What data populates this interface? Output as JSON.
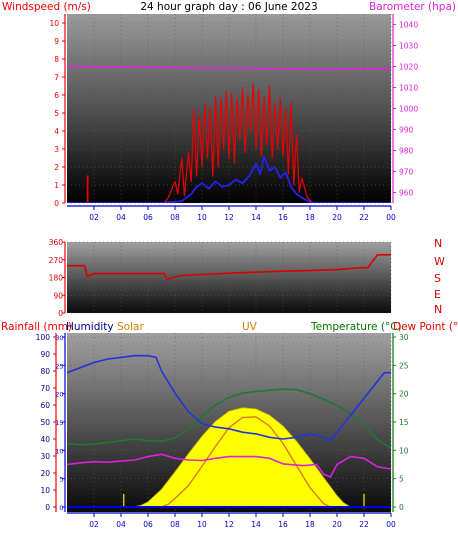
{
  "header": {
    "windspeed_label": "Windspeed (m/s)",
    "title": "24 hour graph day : 06 June 2023",
    "barometer_label": "Barometer (hpa)"
  },
  "labels_bottom": {
    "rainfall": "Rainfall (mm)",
    "humidity": "Humidity",
    "solar": "Solar",
    "uv": "UV",
    "temperature": "Temperature (°C)",
    "dewpoint": "Dew Point (°C"
  },
  "colors": {
    "windspeed": "#ee0000",
    "windspeed_avg": "#2222ee",
    "barometer": "#dd22dd",
    "wind_dir": "#dd0000",
    "humidity": "#2233dd",
    "temperature": "#227733",
    "dewpoint": "#dd22dd",
    "solar": "#ffff00",
    "uv": "#e07020",
    "rain": "#0000ee",
    "humidity_label": "#000088",
    "solar_label": "#d08000",
    "uv_label": "#d08000",
    "temp_label": "#007700",
    "axis_time": "#0000cc"
  },
  "chart_data": [
    {
      "type": "line",
      "name": "wind-baro",
      "x_ticks": [
        "02",
        "04",
        "06",
        "08",
        "10",
        "12",
        "14",
        "16",
        "18",
        "20",
        "22",
        "00"
      ],
      "x_hours": [
        2,
        4,
        6,
        8,
        10,
        12,
        14,
        16,
        18,
        20,
        22,
        24
      ],
      "y_left_ticks": [
        0,
        1,
        2,
        3,
        4,
        5,
        6,
        7,
        8,
        9,
        10
      ],
      "ylim_left": [
        0,
        10.5
      ],
      "y_right_ticks": [
        960,
        970,
        980,
        990,
        1000,
        1010,
        1020,
        1030,
        1040
      ],
      "ylim_right": [
        955,
        1045
      ],
      "series": [
        {
          "name": "Barometer",
          "axis": "right",
          "x": [
            0,
            2,
            4,
            6,
            8,
            10,
            12,
            14,
            16,
            18,
            20,
            22,
            24
          ],
          "y": [
            1020,
            1020,
            1019.8,
            1019.6,
            1019.5,
            1019.4,
            1019.3,
            1019.1,
            1018.8,
            1018.6,
            1018.6,
            1018.8,
            1019
          ]
        },
        {
          "name": "Gust",
          "axis": "left",
          "x": [
            1.5,
            1.5,
            1.55,
            1.55,
            7.2,
            7.5,
            8.0,
            8.2,
            8.5,
            8.7,
            9.0,
            9.2,
            9.4,
            9.6,
            9.8,
            10.0,
            10.2,
            10.4,
            10.6,
            10.8,
            11.0,
            11.2,
            11.4,
            11.6,
            11.8,
            12.0,
            12.2,
            12.4,
            12.6,
            12.8,
            13.0,
            13.2,
            13.4,
            13.6,
            13.8,
            14.0,
            14.2,
            14.4,
            14.6,
            14.8,
            15.0,
            15.2,
            15.4,
            15.6,
            15.8,
            16.0,
            16.2,
            16.4,
            16.6,
            16.8,
            17.0,
            17.2,
            17.4,
            17.8,
            18.2
          ],
          "y": [
            0,
            1.5,
            1.5,
            0,
            0,
            0.3,
            1.2,
            0.5,
            2.5,
            0.4,
            2.8,
            1.2,
            5.2,
            1.5,
            4.9,
            2.0,
            5.5,
            2.5,
            5.3,
            1.5,
            5.9,
            2.0,
            5.8,
            3.0,
            6.2,
            2.5,
            6.1,
            2.2,
            5.8,
            3.5,
            6.4,
            2.8,
            6.0,
            4.0,
            6.6,
            3.0,
            6.3,
            2.6,
            5.9,
            3.2,
            6.5,
            2.5,
            5.5,
            3.0,
            5.8,
            2.6,
            5.2,
            1.6,
            5.6,
            1.0,
            3.8,
            0.6,
            1.4,
            0.3,
            0
          ]
        },
        {
          "name": "Average",
          "axis": "left",
          "x": [
            0,
            7.0,
            7.5,
            8.5,
            9.2,
            9.6,
            10.0,
            10.5,
            11.0,
            11.5,
            12.0,
            12.5,
            13.0,
            13.5,
            14.0,
            14.3,
            14.6,
            15.0,
            15.4,
            15.8,
            16.2,
            16.6,
            17.0,
            17.5,
            18.0,
            18.5,
            24
          ],
          "y": [
            0,
            0,
            0.05,
            0.1,
            0.5,
            0.9,
            1.1,
            0.8,
            1.2,
            0.9,
            1.0,
            1.3,
            1.1,
            1.5,
            2.2,
            1.6,
            2.6,
            1.8,
            2.0,
            1.4,
            1.7,
            0.9,
            0.5,
            0.25,
            0.05,
            0,
            0
          ]
        }
      ]
    },
    {
      "type": "line",
      "name": "wind-direction",
      "x_ticks": [],
      "y_ticks": [
        0,
        90,
        180,
        270,
        360
      ],
      "ylim": [
        0,
        360
      ],
      "right_labels": [
        "N",
        "W",
        "S",
        "E",
        "N"
      ],
      "series": [
        {
          "name": "Direction",
          "x": [
            0,
            1.3,
            1.5,
            2.0,
            6.0,
            7.2,
            7.4,
            7.8,
            8.5,
            10,
            12,
            14,
            16,
            18,
            20,
            21.5,
            22.3,
            22.6,
            23.0,
            24
          ],
          "y": [
            240,
            240,
            185,
            200,
            200,
            200,
            170,
            180,
            190,
            195,
            202,
            207,
            212,
            215,
            220,
            228,
            230,
            260,
            295,
            295
          ]
        }
      ]
    },
    {
      "type": "line",
      "name": "rain-humidity-solar-uv-temperature",
      "x_ticks": [
        "02",
        "04",
        "06",
        "08",
        "10",
        "12",
        "14",
        "16",
        "18",
        "20",
        "22",
        "00"
      ],
      "x_hours": [
        2,
        4,
        6,
        8,
        10,
        12,
        14,
        16,
        18,
        20,
        22,
        24
      ],
      "y_left_ticks": [
        0,
        5,
        10,
        15,
        20,
        25,
        30
      ],
      "ylim_left": [
        0,
        30
      ],
      "y_humidity_ticks": [
        0,
        10,
        20,
        30,
        40,
        50,
        60,
        70,
        80,
        90,
        100
      ],
      "ylim_humidity": [
        0,
        100
      ],
      "y_right_ticks": [
        0,
        5,
        10,
        15,
        20,
        25,
        30
      ],
      "ylim_right": [
        0,
        30
      ],
      "series": [
        {
          "name": "Humidity",
          "axis": "humidity",
          "x": [
            0,
            1,
            2,
            3,
            4,
            5,
            6,
            6.6,
            7,
            8,
            9,
            10,
            11,
            12,
            13,
            14,
            15,
            16,
            17,
            18,
            19,
            19.5,
            20,
            21,
            22,
            23,
            23.5,
            24
          ],
          "y": [
            79,
            82,
            85,
            87,
            88,
            89,
            89,
            88,
            80,
            67,
            56,
            49,
            47,
            46,
            44,
            43,
            41,
            40,
            41,
            43,
            41,
            39,
            44,
            54,
            64,
            74,
            79,
            79
          ]
        },
        {
          "name": "Temperature",
          "axis": "right",
          "x": [
            0,
            1,
            2,
            3,
            4,
            5,
            6,
            7,
            8,
            9,
            10,
            11,
            12,
            13,
            14,
            15,
            16,
            17,
            18,
            19,
            20,
            21,
            22,
            23,
            24
          ],
          "y": [
            11.2,
            11.0,
            11.1,
            11.4,
            11.7,
            12.0,
            11.7,
            11.6,
            12.2,
            13.8,
            16.0,
            18.0,
            19.3,
            20.1,
            20.4,
            20.6,
            20.8,
            20.7,
            20.0,
            19.0,
            17.9,
            16.5,
            14.4,
            11.9,
            10.4
          ]
        },
        {
          "name": "Dew Point",
          "axis": "right",
          "x": [
            0,
            1,
            2,
            3,
            4,
            5,
            6,
            7,
            8,
            9,
            10,
            11,
            12,
            13,
            14,
            15,
            16,
            17,
            17.5,
            18,
            18.5,
            19,
            19.5,
            20,
            21,
            22,
            23,
            24
          ],
          "y": [
            7.5,
            7.8,
            8.0,
            7.9,
            8.1,
            8.3,
            8.9,
            9.3,
            8.6,
            8.3,
            8.2,
            8.6,
            8.9,
            8.9,
            8.9,
            8.6,
            7.6,
            7.4,
            7.3,
            7.4,
            7.5,
            5.8,
            5.3,
            7.5,
            8.9,
            8.6,
            7.1,
            6.7
          ]
        },
        {
          "name": "Solar",
          "axis": "left",
          "x": [
            4.9,
            5.5,
            6,
            7,
            8,
            9,
            10,
            11,
            12,
            13,
            14,
            15,
            16,
            17,
            18,
            19,
            19.5,
            20,
            20.5,
            21
          ],
          "y": [
            0,
            0.3,
            0.9,
            3.1,
            6.2,
            9.4,
            12.5,
            15.1,
            16.9,
            17.5,
            17.3,
            16.2,
            14.3,
            11.6,
            8.5,
            5.2,
            3.6,
            2.0,
            0.7,
            0
          ]
        },
        {
          "name": "UV",
          "axis": "left",
          "x": [
            7,
            7.5,
            8,
            9,
            10,
            11,
            12,
            13,
            14,
            15,
            16,
            17,
            18,
            19,
            19.5
          ],
          "y": [
            0,
            0.5,
            1.5,
            3.8,
            7.2,
            10.7,
            14.0,
            15.8,
            15.9,
            14.3,
            11.2,
            7.3,
            3.4,
            0.6,
            0
          ]
        },
        {
          "name": "Rain",
          "axis": "left",
          "x": [
            0,
            24
          ],
          "y": [
            0,
            0
          ]
        }
      ]
    }
  ]
}
